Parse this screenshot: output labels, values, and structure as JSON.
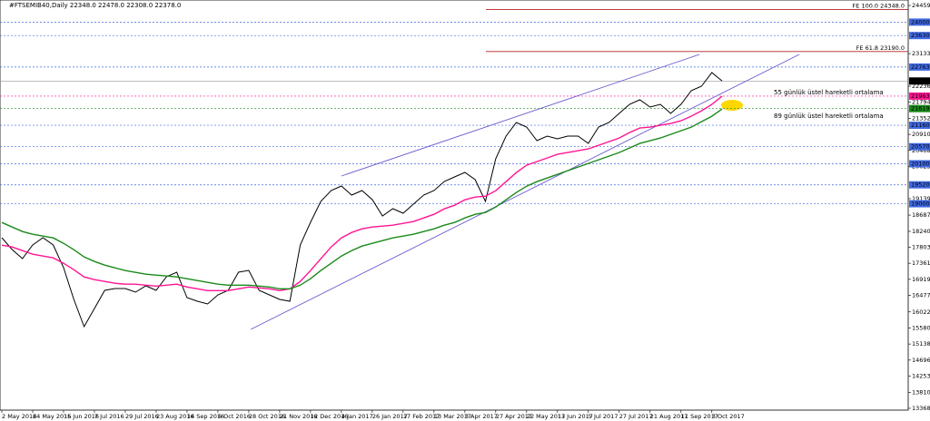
{
  "chart_data": {
    "type": "line",
    "title": "#FTSEMIB40,Daily  22348.0 22478.0 22308.0 22378.0",
    "categories": [
      "2 May 2016",
      null,
      null,
      "24 May 2016",
      null,
      null,
      "15 Jun 2016",
      null,
      null,
      "7 Jul 2016",
      null,
      null,
      "29 Jul 2016",
      null,
      null,
      "23 Aug 2016",
      null,
      null,
      "14 Sep 2016",
      null,
      null,
      "6 Oct 2016",
      null,
      null,
      "28 Oct 2016",
      null,
      null,
      "21 Nov 2016",
      null,
      null,
      "12 Dec 2016",
      null,
      null,
      "4 Jan 2017",
      null,
      null,
      "26 Jan 2017",
      null,
      null,
      "17 Feb 2017",
      null,
      null,
      "13 Mar 2017",
      null,
      null,
      "3 Apr 2017",
      null,
      null,
      "27 Apr 2017",
      null,
      null,
      "22 May 2017",
      null,
      null,
      "13 Jun 2017",
      null,
      null,
      "5 Jul 2017",
      null,
      null,
      "27 Jul 2017",
      null,
      null,
      "21 Aug 2017",
      null,
      null,
      "11 Sep 2017",
      null,
      null,
      "3 Oct 2017",
      null
    ],
    "series": [
      {
        "color": "#000000",
        "values": [
          18064,
          17739,
          17490,
          17864,
          18064,
          17864,
          17240,
          16366,
          15616,
          16116,
          16615,
          16665,
          16665,
          16565,
          16740,
          16615,
          16990,
          17115,
          16416,
          16316,
          16241,
          16491,
          16615,
          17115,
          17165,
          16615,
          16491,
          16366,
          16316,
          17864,
          18489,
          19063,
          19363,
          19488,
          19238,
          19363,
          19113,
          18664,
          18864,
          18739,
          18989,
          19238,
          19363,
          19613,
          19738,
          19863,
          19663,
          19063,
          20238,
          20862,
          21237,
          21112,
          20737,
          20862,
          20787,
          20862,
          20862,
          20662,
          21112,
          21237,
          21486,
          21736,
          21861,
          21661,
          21736,
          21486,
          21736,
          22111,
          22236,
          22610,
          22378
        ]
      },
      {
        "color": "#ff1493",
        "values": [
          17859,
          17809,
          17709,
          17609,
          17559,
          17509,
          17359,
          17184,
          16984,
          16909,
          16859,
          16809,
          16784,
          16784,
          16759,
          16734,
          16759,
          16784,
          16709,
          16659,
          16609,
          16609,
          16609,
          16659,
          16709,
          16684,
          16659,
          16609,
          16659,
          16859,
          17159,
          17484,
          17809,
          18059,
          18209,
          18309,
          18359,
          18384,
          18409,
          18459,
          18509,
          18609,
          18709,
          18859,
          18959,
          19109,
          19184,
          19209,
          19359,
          19609,
          19859,
          20059,
          20159,
          20259,
          20359,
          20409,
          20459,
          20509,
          20609,
          20709,
          20809,
          20959,
          21084,
          21109,
          21159,
          21209,
          21284,
          21409,
          21559,
          21734,
          21960
        ]
      },
      {
        "color": "#1a8a1a",
        "values": [
          18484,
          18359,
          18234,
          18159,
          18109,
          18059,
          17909,
          17734,
          17534,
          17409,
          17309,
          17234,
          17159,
          17109,
          17059,
          17034,
          17009,
          16984,
          16934,
          16884,
          16834,
          16784,
          16759,
          16759,
          16759,
          16734,
          16709,
          16659,
          16659,
          16759,
          16934,
          17159,
          17359,
          17559,
          17709,
          17834,
          17909,
          17984,
          18059,
          18109,
          18159,
          18234,
          18309,
          18409,
          18484,
          18609,
          18709,
          18759,
          18909,
          19109,
          19309,
          19484,
          19609,
          19709,
          19809,
          19909,
          20009,
          20109,
          20209,
          20309,
          20409,
          20534,
          20659,
          20734,
          20809,
          20909,
          21009,
          21109,
          21259,
          21409,
          21610
        ]
      }
    ],
    "ylim": [
      13318,
      24609
    ],
    "yticks": [
      {
        "value": 24459,
        "label": "24459.0"
      },
      {
        "value": 23133,
        "label": "23133.0"
      },
      {
        "value": 22236,
        "label": "22236.0"
      },
      {
        "value": 21794,
        "label": "21794.0"
      },
      {
        "value": 21352,
        "label": "21352.0"
      },
      {
        "value": 20910,
        "label": "20910.0"
      },
      {
        "value": 20468,
        "label": "20468.0"
      },
      {
        "value": 20025,
        "label": "20025.0"
      },
      {
        "value": 19139,
        "label": "19139.0"
      },
      {
        "value": 18687,
        "label": "18687.0"
      },
      {
        "value": 18240,
        "label": "18240.0"
      },
      {
        "value": 17803,
        "label": "17803.0"
      },
      {
        "value": 17361,
        "label": "17361.0"
      },
      {
        "value": 16919,
        "label": "16919.0"
      },
      {
        "value": 16477,
        "label": "16477.0"
      },
      {
        "value": 16022,
        "label": "16022.0"
      },
      {
        "value": 15580,
        "label": "15580.0"
      },
      {
        "value": 15138,
        "label": "15138.0"
      },
      {
        "value": 14696,
        "label": "14696.0"
      },
      {
        "value": 14253,
        "label": "14253.0"
      },
      {
        "value": 13810,
        "label": "13810.0"
      },
      {
        "value": 13368,
        "label": "13368.0"
      }
    ],
    "levels": [
      {
        "value": 24000,
        "label": "24000.0",
        "color": "#4169e1"
      },
      {
        "value": 23630,
        "label": "23630.0",
        "color": "#4169e1"
      },
      {
        "value": 22763,
        "label": "22763.0",
        "color": "#4169e1"
      },
      {
        "value": 22378,
        "label": "22378.0",
        "color": "#000000"
      },
      {
        "value": 21963,
        "label": "21963.0",
        "color": "#ff1493"
      },
      {
        "value": 21619,
        "label": "21619.0",
        "color": "#1a8a1a"
      },
      {
        "value": 21160,
        "label": "21160.0",
        "color": "#4169e1"
      },
      {
        "value": 20570,
        "label": "20570.0",
        "color": "#4169e1"
      },
      {
        "value": 20100,
        "label": "20100.0",
        "color": "#4169e1"
      },
      {
        "value": 19520,
        "label": "19520.0",
        "color": "#4169e1"
      },
      {
        "value": 19000,
        "label": "19000.0",
        "color": "#4169e1"
      }
    ],
    "fibo": [
      {
        "label": "FE   100.0   24348.0",
        "value": 24348,
        "color": "#b22222"
      },
      {
        "label": "FE   61.8   23190.0",
        "value": 23190,
        "color": "#b22222"
      }
    ],
    "trendlines": [
      {
        "from": [
          24.2,
          15541
        ],
        "to": [
          77.5,
          23110
        ],
        "color": "#6a5acd"
      },
      {
        "from": [
          33,
          19763
        ],
        "to": [
          67.8,
          23110
        ],
        "color": "#6a5acd"
      }
    ],
    "annotations": [
      {
        "text": "55 günlük üstel hareketli ortalama",
        "color": "#ff1493"
      },
      {
        "text": "89 günlük üstel hareketli ortalama",
        "color": "#1a8a1a"
      }
    ]
  }
}
